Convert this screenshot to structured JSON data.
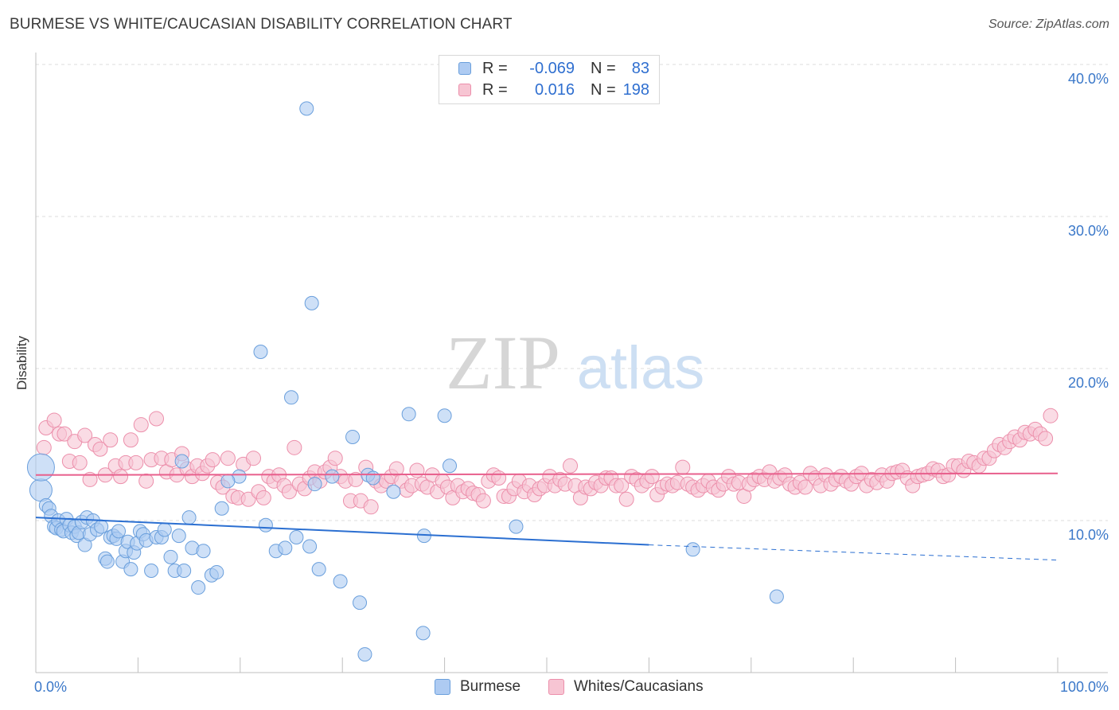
{
  "title": "BURMESE VS WHITE/CAUCASIAN DISABILITY CORRELATION CHART",
  "source": "Source: ZipAtlas.com",
  "watermark": {
    "zip": "ZIP",
    "atlas": "atlas"
  },
  "colors": {
    "burmese_fill": "#aecbf2",
    "burmese_stroke": "#6a9fdc",
    "burmese_line": "#2b6fd1",
    "white_fill": "#f7c5d3",
    "white_stroke": "#ec8fab",
    "white_line": "#e8608d",
    "tick_label": "#3b78c9"
  },
  "legend": {
    "r_label": "R =",
    "n_label": "N =",
    "burmese": {
      "r": "-0.069",
      "n": "83"
    },
    "white": {
      "r": "0.016",
      "n": "198"
    }
  },
  "bottom_legend": {
    "burmese": "Burmese",
    "white": "Whites/Caucasians"
  },
  "chart_data": {
    "type": "scatter",
    "xlabel": "",
    "ylabel": "Disability",
    "xlim": [
      0,
      100
    ],
    "ylim": [
      0,
      40
    ],
    "x_tick_labels": [
      "0.0%",
      "100.0%"
    ],
    "y_ticks": [
      10,
      20,
      30,
      40
    ],
    "y_tick_labels": [
      "10.0%",
      "20.0%",
      "30.0%",
      "40.0%"
    ],
    "series": [
      {
        "name": "Burmese",
        "trend": {
          "x": [
            0,
            60,
            100
          ],
          "y": [
            10.2,
            8.4,
            7.4
          ],
          "solid_until": 60
        },
        "points": [
          [
            0.5,
            12.0
          ],
          [
            0.5,
            13.5
          ],
          [
            1.0,
            11.0
          ],
          [
            1.3,
            10.8
          ],
          [
            1.5,
            10.3
          ],
          [
            1.8,
            9.6
          ],
          [
            2.0,
            9.5
          ],
          [
            2.2,
            10.0
          ],
          [
            2.5,
            9.4
          ],
          [
            2.7,
            9.3
          ],
          [
            3.0,
            10.1
          ],
          [
            3.3,
            9.7
          ],
          [
            3.5,
            9.2
          ],
          [
            3.8,
            9.6
          ],
          [
            4.0,
            9.0
          ],
          [
            4.2,
            9.2
          ],
          [
            4.5,
            9.9
          ],
          [
            4.8,
            8.4
          ],
          [
            5.0,
            10.2
          ],
          [
            5.3,
            9.1
          ],
          [
            5.6,
            10.0
          ],
          [
            6.0,
            9.4
          ],
          [
            6.4,
            9.6
          ],
          [
            6.8,
            7.5
          ],
          [
            7.0,
            7.3
          ],
          [
            7.3,
            8.9
          ],
          [
            7.6,
            9.0
          ],
          [
            7.9,
            8.8
          ],
          [
            8.1,
            9.3
          ],
          [
            8.5,
            7.3
          ],
          [
            8.8,
            8.0
          ],
          [
            9.0,
            8.6
          ],
          [
            9.3,
            6.8
          ],
          [
            9.6,
            7.9
          ],
          [
            9.9,
            8.5
          ],
          [
            10.2,
            9.3
          ],
          [
            10.5,
            9.1
          ],
          [
            10.8,
            8.7
          ],
          [
            11.3,
            6.7
          ],
          [
            11.8,
            8.9
          ],
          [
            12.3,
            8.9
          ],
          [
            12.6,
            9.4
          ],
          [
            13.2,
            7.6
          ],
          [
            13.6,
            6.7
          ],
          [
            14.0,
            9.0
          ],
          [
            14.5,
            6.7
          ],
          [
            15.0,
            10.2
          ],
          [
            15.3,
            8.2
          ],
          [
            15.9,
            5.6
          ],
          [
            16.4,
            8.0
          ],
          [
            17.2,
            6.4
          ],
          [
            17.7,
            6.6
          ],
          [
            18.2,
            10.8
          ],
          [
            19.9,
            12.9
          ],
          [
            22.5,
            9.7
          ],
          [
            23.5,
            8.0
          ],
          [
            24.4,
            8.2
          ],
          [
            25.5,
            8.9
          ],
          [
            26.8,
            8.3
          ],
          [
            27.7,
            6.8
          ],
          [
            29.8,
            6.0
          ],
          [
            31.7,
            4.6
          ],
          [
            32.2,
            1.2
          ],
          [
            37.9,
            2.6
          ],
          [
            47.0,
            9.6
          ],
          [
            64.3,
            8.1
          ],
          [
            72.5,
            5.0
          ],
          [
            29.0,
            12.9
          ],
          [
            27.0,
            24.3
          ],
          [
            22.0,
            21.1
          ],
          [
            25.0,
            18.1
          ],
          [
            36.5,
            17.0
          ],
          [
            40.0,
            16.9
          ],
          [
            31.0,
            15.5
          ],
          [
            40.5,
            13.6
          ],
          [
            32.5,
            13.0
          ],
          [
            33.0,
            12.8
          ],
          [
            35.0,
            11.9
          ],
          [
            26.5,
            37.1
          ],
          [
            38.0,
            9.0
          ],
          [
            14.3,
            13.9
          ],
          [
            27.3,
            12.4
          ],
          [
            18.8,
            12.6
          ]
        ]
      },
      {
        "name": "Whites/Caucasians",
        "trend": {
          "x": [
            0,
            100
          ],
          "y": [
            13.0,
            13.1
          ]
        },
        "points": [
          [
            0.8,
            14.8
          ],
          [
            1.0,
            16.1
          ],
          [
            1.8,
            16.6
          ],
          [
            2.3,
            15.7
          ],
          [
            2.8,
            15.7
          ],
          [
            3.3,
            13.9
          ],
          [
            3.8,
            15.2
          ],
          [
            4.3,
            13.8
          ],
          [
            4.8,
            15.6
          ],
          [
            5.3,
            12.7
          ],
          [
            5.8,
            15.0
          ],
          [
            6.3,
            14.7
          ],
          [
            6.8,
            13.0
          ],
          [
            7.3,
            15.3
          ],
          [
            7.8,
            13.6
          ],
          [
            8.3,
            12.9
          ],
          [
            8.8,
            13.8
          ],
          [
            9.3,
            15.3
          ],
          [
            9.8,
            13.8
          ],
          [
            10.3,
            16.3
          ],
          [
            10.8,
            12.6
          ],
          [
            11.3,
            14.0
          ],
          [
            11.8,
            16.7
          ],
          [
            12.3,
            14.1
          ],
          [
            12.8,
            13.2
          ],
          [
            13.3,
            14.0
          ],
          [
            13.8,
            13.0
          ],
          [
            14.3,
            14.4
          ],
          [
            14.8,
            13.4
          ],
          [
            15.3,
            12.9
          ],
          [
            15.8,
            13.6
          ],
          [
            16.3,
            13.1
          ],
          [
            16.8,
            13.6
          ],
          [
            17.3,
            14.0
          ],
          [
            17.8,
            12.5
          ],
          [
            18.3,
            12.2
          ],
          [
            18.8,
            14.1
          ],
          [
            19.3,
            11.6
          ],
          [
            19.8,
            11.5
          ],
          [
            20.3,
            13.7
          ],
          [
            20.8,
            11.4
          ],
          [
            21.3,
            14.1
          ],
          [
            21.8,
            11.9
          ],
          [
            22.3,
            11.5
          ],
          [
            22.8,
            12.9
          ],
          [
            23.3,
            12.6
          ],
          [
            23.8,
            13.0
          ],
          [
            24.3,
            12.3
          ],
          [
            24.8,
            11.9
          ],
          [
            25.3,
            14.8
          ],
          [
            25.8,
            12.4
          ],
          [
            26.3,
            12.1
          ],
          [
            26.8,
            12.8
          ],
          [
            27.3,
            13.2
          ],
          [
            27.8,
            12.6
          ],
          [
            28.3,
            13.2
          ],
          [
            28.8,
            13.5
          ],
          [
            29.3,
            14.1
          ],
          [
            29.8,
            12.9
          ],
          [
            30.3,
            12.6
          ],
          [
            30.8,
            11.3
          ],
          [
            31.3,
            12.7
          ],
          [
            31.8,
            11.3
          ],
          [
            32.3,
            13.5
          ],
          [
            32.8,
            10.9
          ],
          [
            33.3,
            12.6
          ],
          [
            33.8,
            12.3
          ],
          [
            34.3,
            12.6
          ],
          [
            34.8,
            12.9
          ],
          [
            35.3,
            13.4
          ],
          [
            35.8,
            12.6
          ],
          [
            36.3,
            12.0
          ],
          [
            36.8,
            12.3
          ],
          [
            37.3,
            13.3
          ],
          [
            37.8,
            12.4
          ],
          [
            38.3,
            12.2
          ],
          [
            38.8,
            13.0
          ],
          [
            39.3,
            11.9
          ],
          [
            39.8,
            12.6
          ],
          [
            40.3,
            12.2
          ],
          [
            40.8,
            11.5
          ],
          [
            41.3,
            12.3
          ],
          [
            41.8,
            11.9
          ],
          [
            42.3,
            12.1
          ],
          [
            42.8,
            11.8
          ],
          [
            43.3,
            11.7
          ],
          [
            43.8,
            11.3
          ],
          [
            44.3,
            12.6
          ],
          [
            44.8,
            13.0
          ],
          [
            45.3,
            12.8
          ],
          [
            45.8,
            11.6
          ],
          [
            46.3,
            11.6
          ],
          [
            46.8,
            12.1
          ],
          [
            47.3,
            12.6
          ],
          [
            47.8,
            11.9
          ],
          [
            48.3,
            12.3
          ],
          [
            48.8,
            11.7
          ],
          [
            49.3,
            12.1
          ],
          [
            49.8,
            12.3
          ],
          [
            50.3,
            12.9
          ],
          [
            50.8,
            12.3
          ],
          [
            51.3,
            12.7
          ],
          [
            51.8,
            12.4
          ],
          [
            52.3,
            13.6
          ],
          [
            52.8,
            12.3
          ],
          [
            53.3,
            11.5
          ],
          [
            53.8,
            12.2
          ],
          [
            54.3,
            12.1
          ],
          [
            54.8,
            12.5
          ],
          [
            55.3,
            12.3
          ],
          [
            55.8,
            12.8
          ],
          [
            56.3,
            12.8
          ],
          [
            56.8,
            12.3
          ],
          [
            57.3,
            12.3
          ],
          [
            57.8,
            11.4
          ],
          [
            58.3,
            12.9
          ],
          [
            58.8,
            12.7
          ],
          [
            59.3,
            12.3
          ],
          [
            59.8,
            12.6
          ],
          [
            60.3,
            12.9
          ],
          [
            60.8,
            11.7
          ],
          [
            61.3,
            12.2
          ],
          [
            61.8,
            12.4
          ],
          [
            62.3,
            12.3
          ],
          [
            62.8,
            12.5
          ],
          [
            63.3,
            13.5
          ],
          [
            63.8,
            12.4
          ],
          [
            64.3,
            12.2
          ],
          [
            64.8,
            12.0
          ],
          [
            65.3,
            12.3
          ],
          [
            65.8,
            12.6
          ],
          [
            66.3,
            12.2
          ],
          [
            66.8,
            12.0
          ],
          [
            67.3,
            12.4
          ],
          [
            67.8,
            12.9
          ],
          [
            68.3,
            12.4
          ],
          [
            68.8,
            12.5
          ],
          [
            69.3,
            11.6
          ],
          [
            69.8,
            12.4
          ],
          [
            70.3,
            12.7
          ],
          [
            70.8,
            12.9
          ],
          [
            71.3,
            12.7
          ],
          [
            71.8,
            13.2
          ],
          [
            72.3,
            12.6
          ],
          [
            72.8,
            12.8
          ],
          [
            73.3,
            13.0
          ],
          [
            73.8,
            12.4
          ],
          [
            74.3,
            12.2
          ],
          [
            74.8,
            12.5
          ],
          [
            75.3,
            12.2
          ],
          [
            75.8,
            13.1
          ],
          [
            76.3,
            12.8
          ],
          [
            76.8,
            12.3
          ],
          [
            77.3,
            13.0
          ],
          [
            77.8,
            12.4
          ],
          [
            78.3,
            12.7
          ],
          [
            78.8,
            12.9
          ],
          [
            79.3,
            12.6
          ],
          [
            79.8,
            12.4
          ],
          [
            80.3,
            12.9
          ],
          [
            80.8,
            13.1
          ],
          [
            81.3,
            12.3
          ],
          [
            81.8,
            12.7
          ],
          [
            82.3,
            12.5
          ],
          [
            82.8,
            13.0
          ],
          [
            83.3,
            12.6
          ],
          [
            83.8,
            13.1
          ],
          [
            84.3,
            13.2
          ],
          [
            84.8,
            13.3
          ],
          [
            85.3,
            12.8
          ],
          [
            85.8,
            12.3
          ],
          [
            86.3,
            12.9
          ],
          [
            86.8,
            13.0
          ],
          [
            87.3,
            13.1
          ],
          [
            87.8,
            13.4
          ],
          [
            88.3,
            13.3
          ],
          [
            88.8,
            12.9
          ],
          [
            89.3,
            13.0
          ],
          [
            89.8,
            13.6
          ],
          [
            90.3,
            13.6
          ],
          [
            90.8,
            13.3
          ],
          [
            91.3,
            13.9
          ],
          [
            91.8,
            13.8
          ],
          [
            92.3,
            13.6
          ],
          [
            92.8,
            14.1
          ],
          [
            93.3,
            14.1
          ],
          [
            93.8,
            14.6
          ],
          [
            94.3,
            15.0
          ],
          [
            94.8,
            14.8
          ],
          [
            95.3,
            15.2
          ],
          [
            95.8,
            15.5
          ],
          [
            96.3,
            15.3
          ],
          [
            96.8,
            15.8
          ],
          [
            97.3,
            15.7
          ],
          [
            97.8,
            16.0
          ],
          [
            98.3,
            15.7
          ],
          [
            98.8,
            15.4
          ],
          [
            99.3,
            16.9
          ]
        ]
      }
    ]
  }
}
